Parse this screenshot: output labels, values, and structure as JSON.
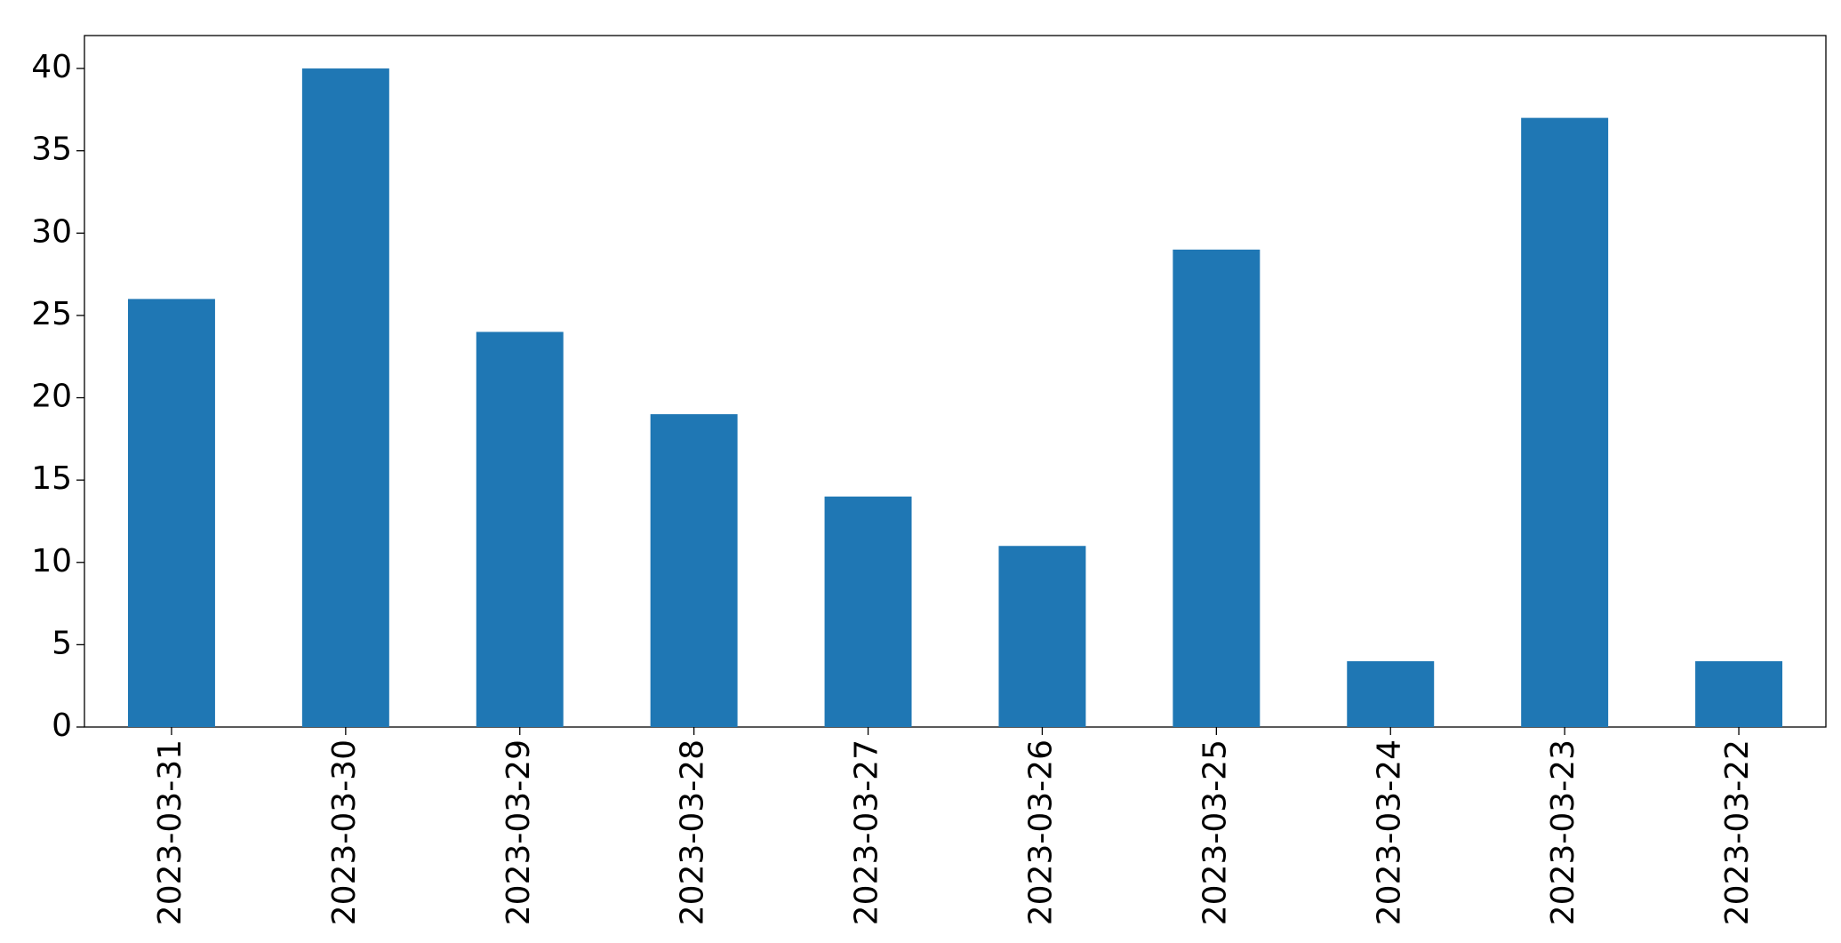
{
  "chart_data": {
    "type": "bar",
    "categories": [
      "2023-03-31",
      "2023-03-30",
      "2023-03-29",
      "2023-03-28",
      "2023-03-27",
      "2023-03-26",
      "2023-03-25",
      "2023-03-24",
      "2023-03-23",
      "2023-03-22"
    ],
    "values": [
      26,
      40,
      24,
      19,
      14,
      11,
      29,
      4,
      37,
      4
    ],
    "color": "#1f77b4",
    "ylim": [
      0,
      42
    ],
    "yticks": [
      0,
      5,
      10,
      15,
      20,
      25,
      30,
      35,
      40
    ],
    "grid": false
  }
}
